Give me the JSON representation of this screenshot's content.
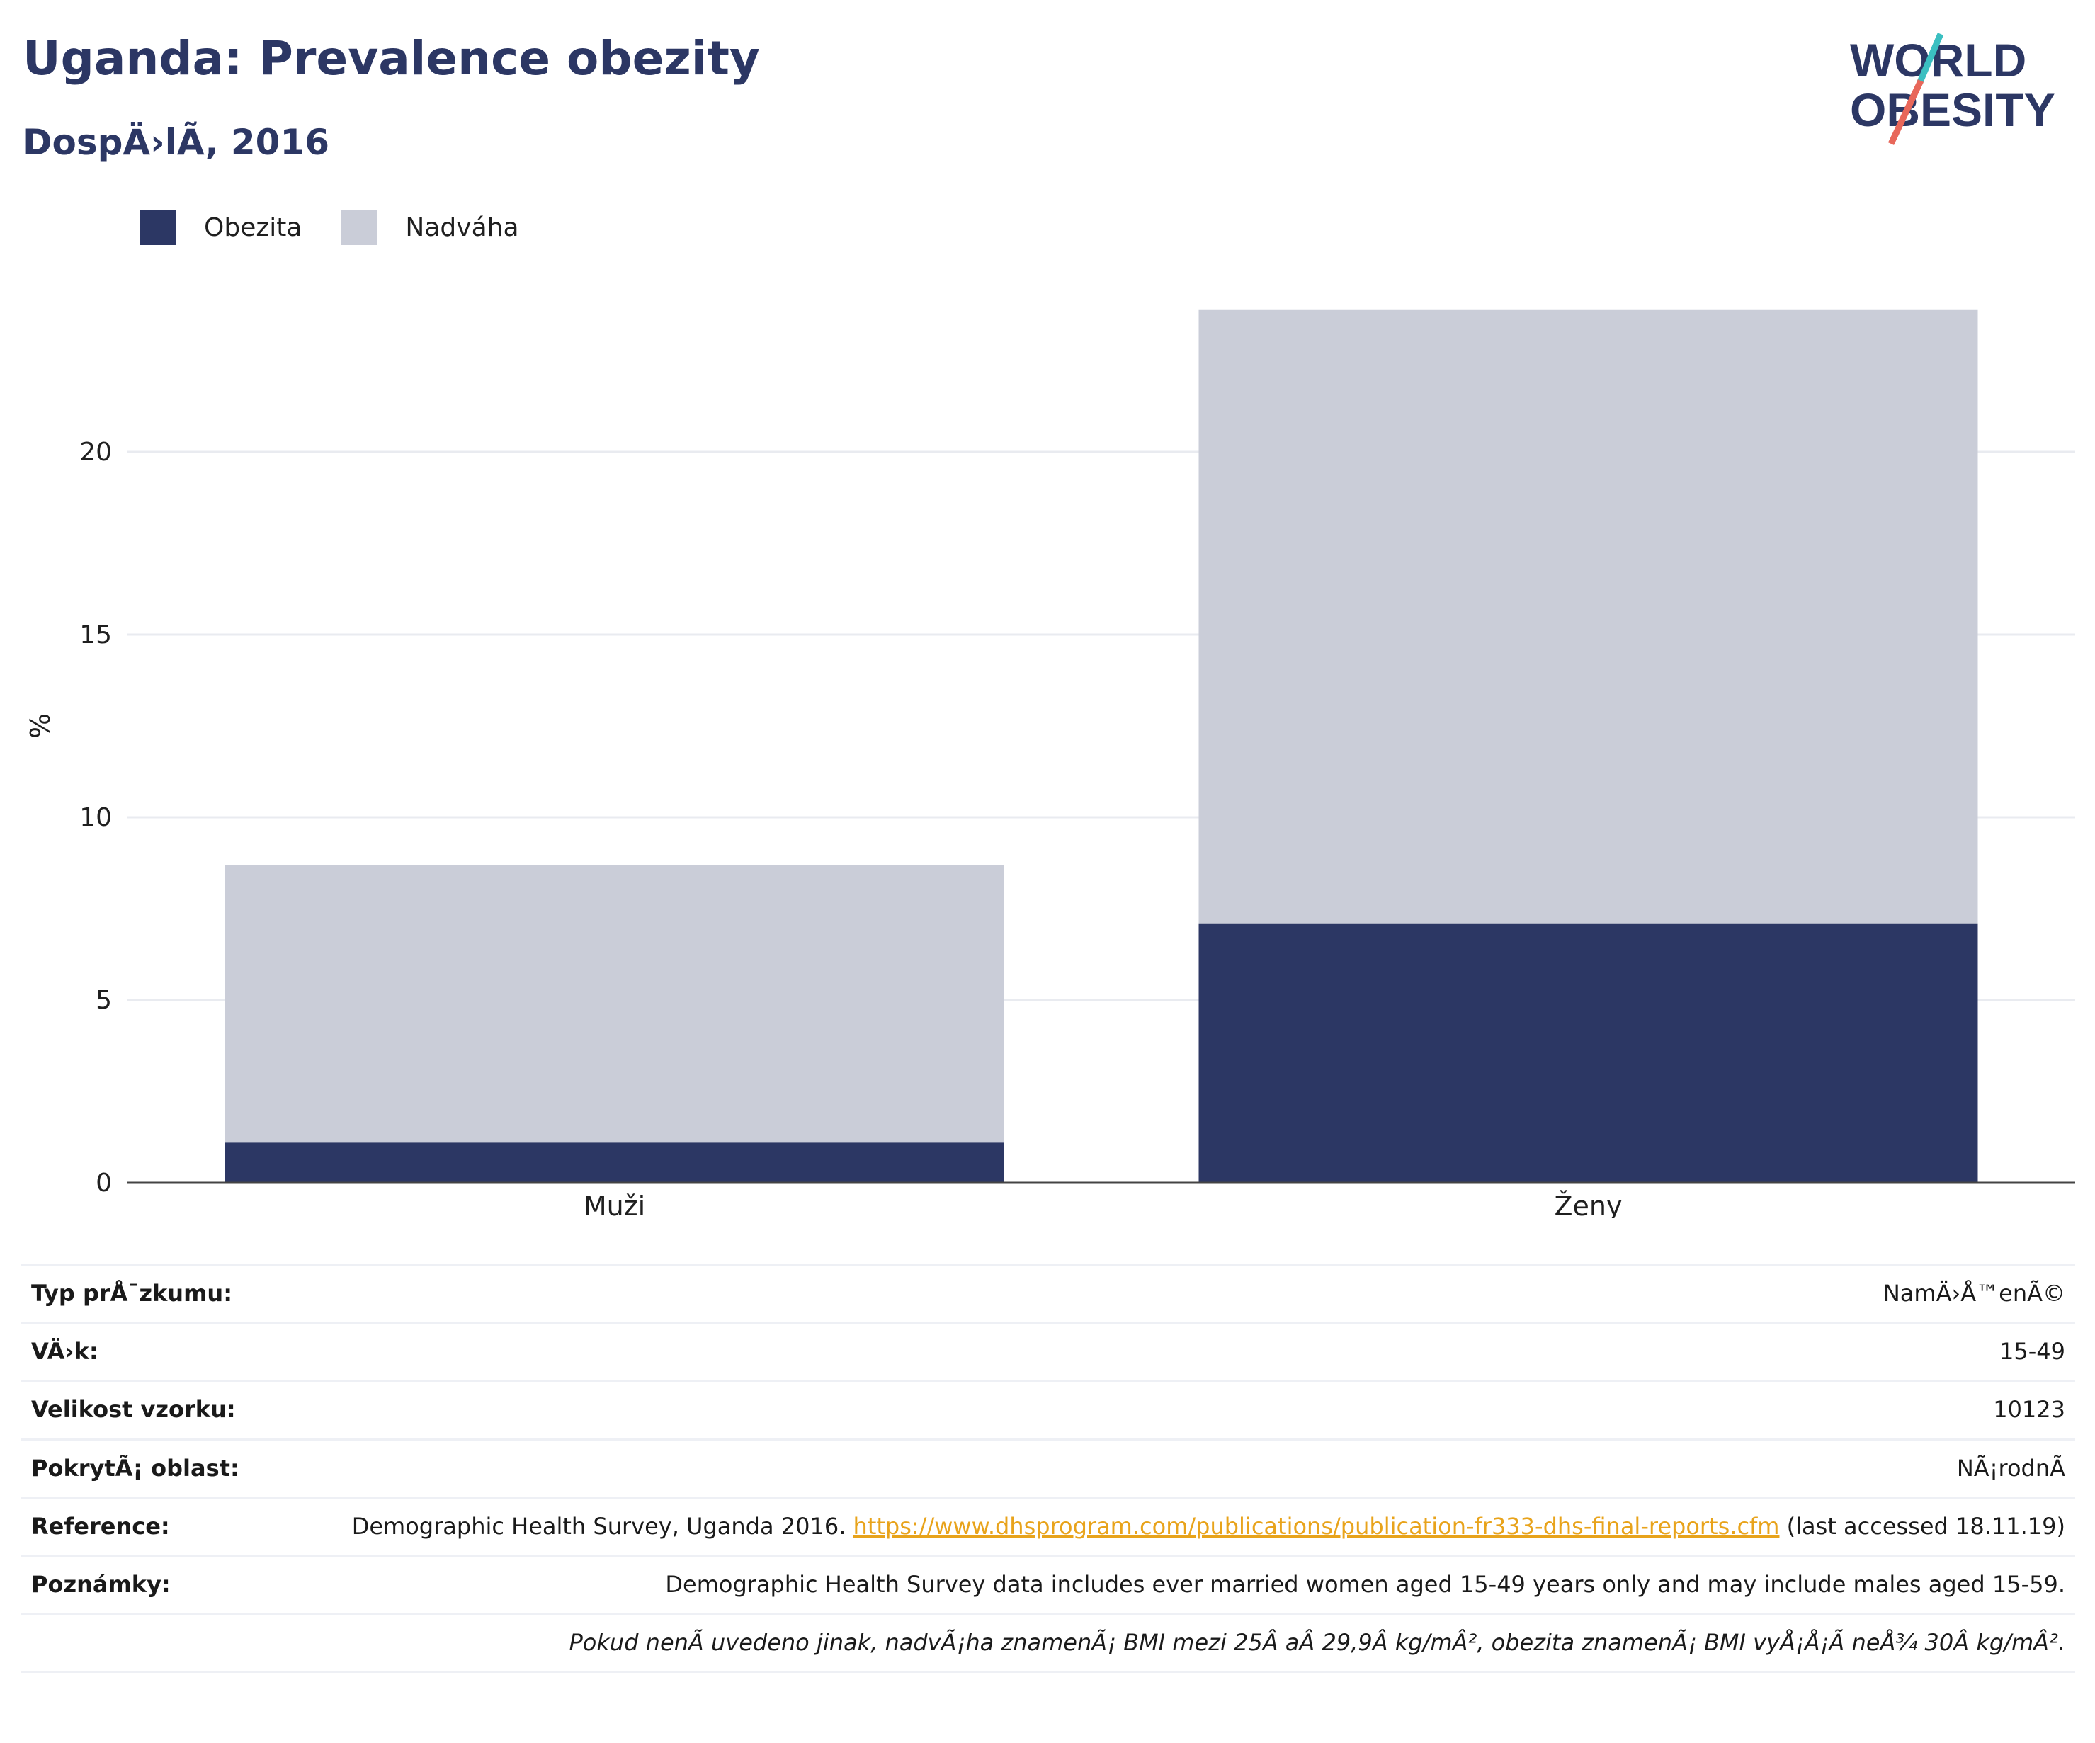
{
  "header": {
    "title": "Uganda: Prevalence obezity",
    "subtitle": "DospÄ›lÃ­, 2016"
  },
  "logo": {
    "line1": "WORLD",
    "line2": "OBESITY",
    "accent_colors": [
      "#3bbfc1",
      "#e8675a"
    ]
  },
  "legend": [
    {
      "label": "Obezita",
      "color": "#2c3764"
    },
    {
      "label": "Nadváha",
      "color": "#cacdd8"
    }
  ],
  "chart_data": {
    "type": "bar",
    "stacked": true,
    "categories": [
      "Muži",
      "Ženy"
    ],
    "series": [
      {
        "name": "Obezita",
        "values": [
          1.1,
          7.1
        ],
        "color": "#2c3764"
      },
      {
        "name": "Nadváha",
        "values": [
          7.6,
          16.8
        ],
        "color": "#cacdd8"
      }
    ],
    "ylabel": "%",
    "ylim": [
      0,
      25
    ],
    "yticks": [
      0,
      5,
      10,
      15,
      20
    ],
    "grid": true,
    "legend_position": "top-left"
  },
  "info": {
    "survey_type_label": "Typ prÅ¯zkumu:",
    "survey_type_value": "NamÄ›Å™enÃ©",
    "age_label": "VÄ›k:",
    "age_value": "15-49",
    "sample_label": "Velikost vzorku:",
    "sample_value": "10123",
    "coverage_label": "PokrytÃ¡ oblast:",
    "coverage_value": "NÃ¡rodnÃ­",
    "reference_label": "Reference:",
    "reference_text": "Demographic Health Survey, Uganda 2016.",
    "reference_link": "https://www.dhsprogram.com/publications/publication-fr333-dhs-final-reports.cfm",
    "reference_suffix": "(last accessed 18.11.19)",
    "notes_label": "Poznámky:",
    "notes_value": "Demographic Health Survey data includes ever married women aged 15-49 years only and may include males aged 15-59.",
    "definition": "Pokud nenÃ­ uvedeno jinak, nadvÃ¡ha znamenÃ¡ BMI mezi 25Â aÂ 29,9Â kg/mÂ², obezita znamenÃ¡ BMI vyÅ¡Å¡Ã­ neÅ¾ 30Â kg/mÂ²."
  }
}
